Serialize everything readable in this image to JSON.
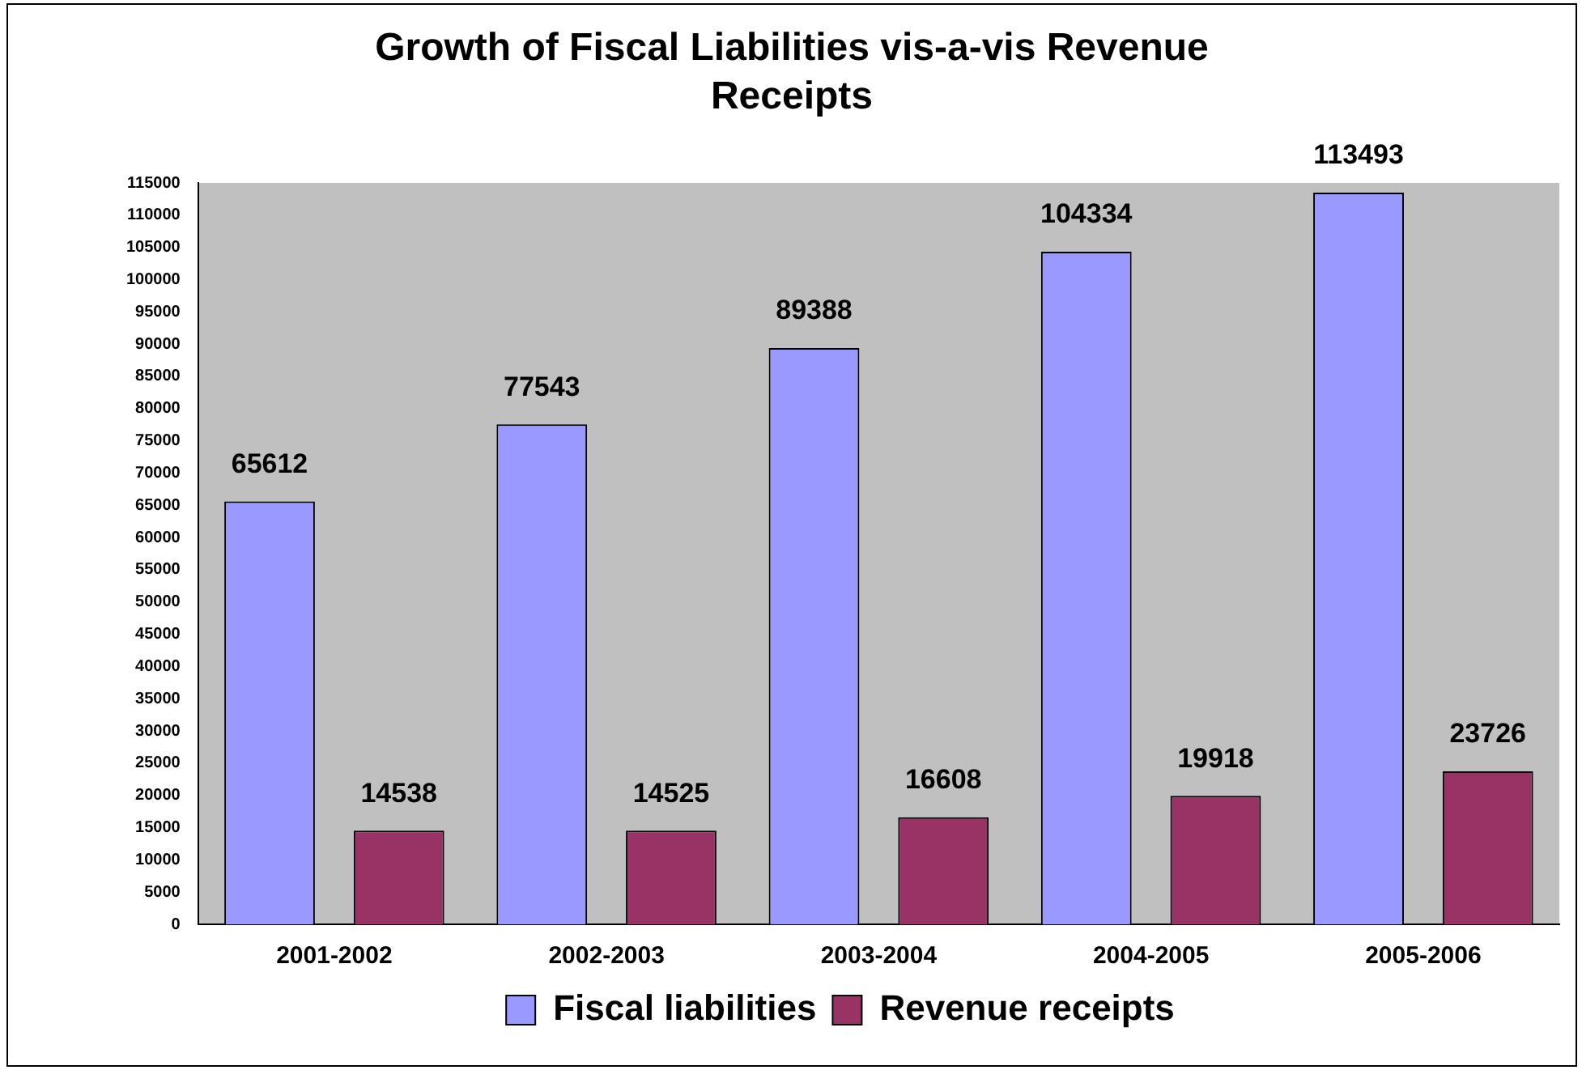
{
  "chart_data": {
    "type": "bar",
    "title": "Growth of Fiscal Liabilities vis-a-vis Revenue Receipts",
    "categories": [
      "2001-2002",
      "2002-2003",
      "2003-2004",
      "2004-2005",
      "2005-2006"
    ],
    "series": [
      {
        "name": "Fiscal liabilities",
        "color": "#9999ff",
        "values": [
          65612,
          77543,
          89388,
          104334,
          113493
        ]
      },
      {
        "name": "Revenue receipts",
        "color": "#993366",
        "values": [
          14538,
          14525,
          16608,
          19918,
          23726
        ]
      }
    ],
    "ylim": [
      0,
      115000
    ],
    "yticks": [
      0,
      5000,
      10000,
      15000,
      20000,
      25000,
      30000,
      35000,
      40000,
      45000,
      50000,
      55000,
      60000,
      65000,
      70000,
      75000,
      80000,
      85000,
      90000,
      95000,
      100000,
      105000,
      110000,
      115000
    ],
    "grid": false,
    "legend": "bottom",
    "data_labels": true
  }
}
